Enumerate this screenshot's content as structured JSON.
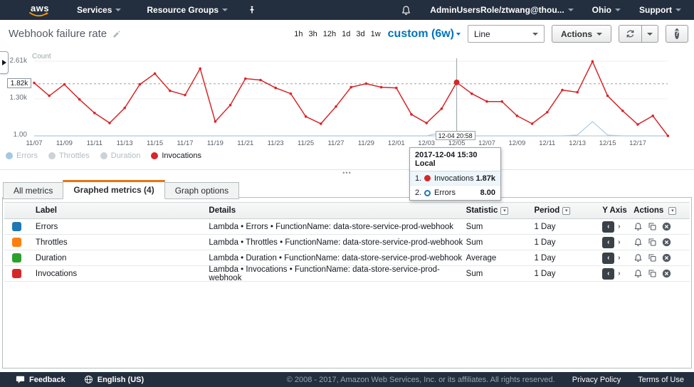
{
  "topnav": {
    "logo": "aws",
    "services": "Services",
    "resource_groups": "Resource Groups",
    "account": "AdminUsersRole/ztwang@thou...",
    "region": "Ohio",
    "support": "Support"
  },
  "toolbar": {
    "title": "Webhook failure rate",
    "ranges": [
      "1h",
      "3h",
      "12h",
      "1d",
      "3d",
      "1w"
    ],
    "custom_range": "custom (6w)",
    "chart_type": "Line",
    "actions": "Actions",
    "help": "?",
    "accent_blue": "#0073bb"
  },
  "chart": {
    "ylabel": "Count",
    "yticks": [
      {
        "label": "2.61k",
        "value": 2610,
        "boxed": false
      },
      {
        "label": "1.82k",
        "value": 1820,
        "boxed": true
      },
      {
        "label": "1.30k",
        "value": 1300,
        "boxed": false
      },
      {
        "label": "1.00",
        "value": 1,
        "boxed": false
      }
    ],
    "crosshair_label": "12-04 20:58",
    "legend": [
      {
        "label": "Errors",
        "color": "#a3c7e6",
        "dimmed": true
      },
      {
        "label": "Throttles",
        "color": "#cdd2d6",
        "dimmed": true
      },
      {
        "label": "Duration",
        "color": "#cdd2d6",
        "dimmed": true
      },
      {
        "label": "Invocations",
        "color": "#d62728",
        "dimmed": false
      }
    ],
    "tooltip": {
      "title": "2017-12-04 15:30 Local",
      "rows": [
        {
          "num": "1.",
          "label": "Invocations",
          "value": "1.87k",
          "marker": "filled",
          "color": "#d62728"
        },
        {
          "num": "2.",
          "label": "Errors",
          "value": "8.00",
          "marker": "open",
          "color": "#1f77b4"
        }
      ]
    }
  },
  "chart_data": {
    "type": "line",
    "title": "Webhook failure rate",
    "ylabel": "Count",
    "ylim": [
      1,
      2610
    ],
    "ytick_values": [
      1,
      1300,
      1820,
      2610
    ],
    "x": [
      "11/07",
      "11/08",
      "11/09",
      "11/10",
      "11/11",
      "11/12",
      "11/13",
      "11/14",
      "11/15",
      "11/16",
      "11/17",
      "11/18",
      "11/19",
      "11/20",
      "11/21",
      "11/22",
      "11/23",
      "11/24",
      "11/25",
      "11/26",
      "11/27",
      "11/28",
      "11/29",
      "11/30",
      "12/01",
      "12/02",
      "12/03",
      "12/04",
      "12/05",
      "12/06",
      "12/07",
      "12/08",
      "12/09",
      "12/10",
      "12/11",
      "12/12",
      "12/13",
      "12/14",
      "12/15",
      "12/16",
      "12/17",
      "12/18",
      "12/19"
    ],
    "x_tick_labels": [
      "11/07",
      "11/09",
      "11/11",
      "11/13",
      "11/15",
      "11/17",
      "11/19",
      "11/21",
      "11/23",
      "11/25",
      "11/27",
      "11/29",
      "12/01",
      "12/03",
      "12/05",
      "12/07",
      "12/09",
      "12/11",
      "12/13",
      "12/15",
      "12/17"
    ],
    "series": [
      {
        "name": "Invocations",
        "color": "#d62728",
        "values": [
          1851,
          1401,
          1801,
          1276,
          801,
          451,
          976,
          1801,
          2176,
          1576,
          1426,
          2351,
          501,
          1076,
          2001,
          1951,
          1676,
          1476,
          676,
          426,
          1026,
          1701,
          1826,
          1701,
          1676,
          751,
          451,
          951,
          1870,
          1476,
          1201,
          1201,
          701,
          426,
          826,
          1601,
          1526,
          2601,
          1401,
          876,
          401,
          701,
          1
        ]
      },
      {
        "name": "Errors",
        "color": "#aec7e8",
        "values": [
          0,
          0,
          0,
          0,
          0,
          0,
          0,
          0,
          0,
          0,
          0,
          0,
          0,
          0,
          0,
          0,
          0,
          0,
          0,
          0,
          0,
          0,
          0,
          0,
          0,
          0,
          0,
          120,
          8,
          0,
          0,
          0,
          0,
          0,
          0,
          0,
          30,
          500,
          30,
          0,
          0,
          0,
          0
        ]
      }
    ],
    "hover": {
      "index": 28,
      "time_label": "12-04 20:58",
      "invocations_display": "1.87k",
      "errors_display": "8.00"
    }
  },
  "tabs": {
    "items": [
      {
        "label": "All metrics",
        "active": false
      },
      {
        "label": "Graphed metrics (4)",
        "active": true
      },
      {
        "label": "Graph options",
        "active": false
      }
    ]
  },
  "table": {
    "columns": {
      "label": "Label",
      "details": "Details",
      "statistic": "Statistic",
      "period": "Period",
      "yaxis": "Y Axis",
      "actions": "Actions"
    },
    "rows": [
      {
        "color": "#1f77b4",
        "label": "Errors",
        "details": "Lambda • Errors • FunctionName: data-store-service-prod-webhook",
        "statistic": "Sum",
        "period": "1 Day"
      },
      {
        "color": "#ff7f0e",
        "label": "Throttles",
        "details": "Lambda • Throttles • FunctionName: data-store-service-prod-webhook",
        "statistic": "Sum",
        "period": "1 Day"
      },
      {
        "color": "#2ca02c",
        "label": "Duration",
        "details": "Lambda • Duration • FunctionName: data-store-service-prod-webhook",
        "statistic": "Average",
        "period": "1 Day"
      },
      {
        "color": "#d62728",
        "label": "Invocations",
        "details": "Lambda • Invocations • FunctionName: data-store-service-prod-webhook",
        "statistic": "Sum",
        "period": "1 Day"
      }
    ]
  },
  "footer": {
    "feedback": "Feedback",
    "language": "English (US)",
    "copyright": "© 2008 - 2017, Amazon Web Services, Inc. or its affiliates. All rights reserved.",
    "privacy": "Privacy Policy",
    "terms": "Terms of Use"
  }
}
